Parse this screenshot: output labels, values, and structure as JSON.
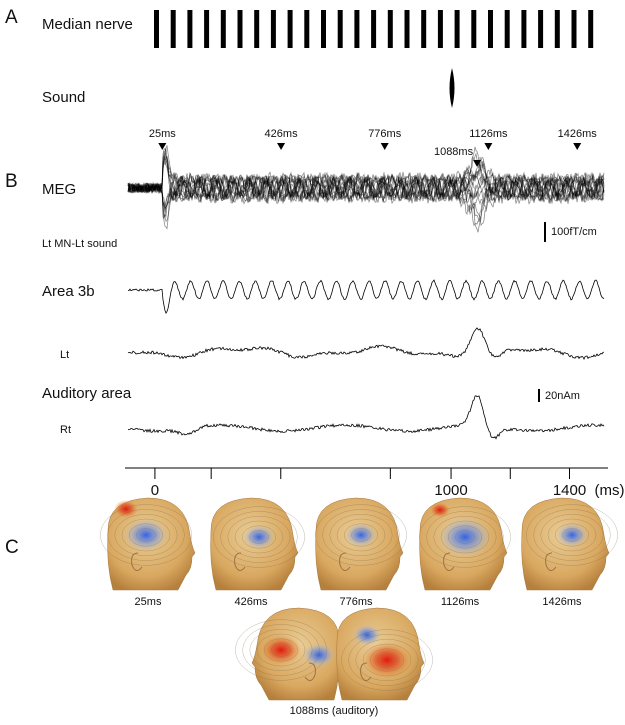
{
  "panel_a": {
    "label": "A",
    "median_nerve": "Median nerve",
    "sound": "Sound"
  },
  "panel_b": {
    "label": "B",
    "meg": "MEG",
    "meg_scale": "100fT/cm",
    "condition": "Lt MN-Lt sound",
    "area_3b": "Area 3b",
    "lt": "Lt",
    "auditory_area": "Auditory area",
    "source_scale": "20nAm",
    "rt": "Rt",
    "markers": [
      {
        "value": 25,
        "label": "25ms"
      },
      {
        "value": 426,
        "label": "426ms"
      },
      {
        "value": 776,
        "label": "776ms"
      },
      {
        "value": 1126,
        "label": "1126ms"
      },
      {
        "value": 1426,
        "label": "1426ms"
      },
      {
        "value": 1088,
        "label": "1088ms"
      }
    ],
    "time_axis": {
      "xlim": [
        -101,
        1530
      ],
      "xticks": [
        0,
        1000,
        1400
      ],
      "minor_ticks": [
        190,
        425,
        795,
        1200
      ],
      "unit": "(ms)"
    }
  },
  "panel_c": {
    "label": "C",
    "maps": [
      "25ms",
      "426ms",
      "776ms",
      "1126ms",
      "1426ms"
    ],
    "auditory_caption": "1088ms (auditory)"
  }
}
